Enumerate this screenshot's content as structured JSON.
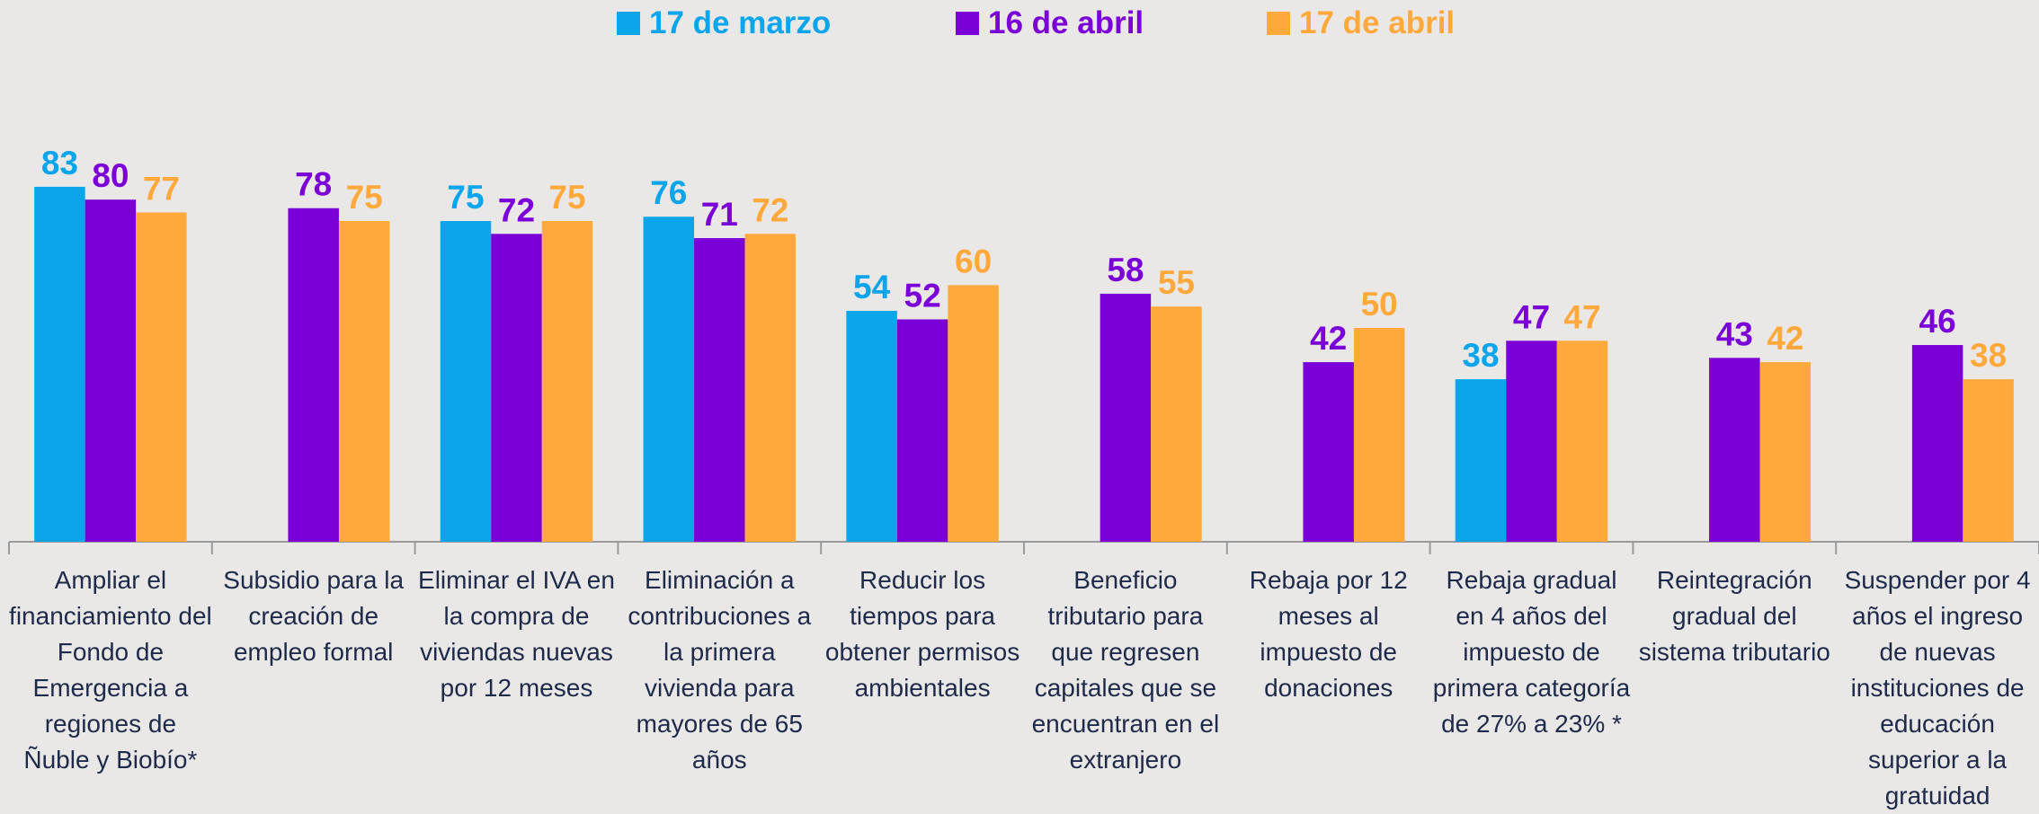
{
  "chart_data": {
    "type": "bar",
    "categories": [
      "Ampliar el financiamiento del Fondo de Emergencia a regiones de Ñuble y Biobío*",
      "Subsidio para la creación de empleo formal",
      "Eliminar el IVA en la compra de viviendas nuevas por 12 meses",
      "Eliminación a contribuciones a la primera vivienda para mayores de 65 años",
      "Reducir los tiempos para obtener permisos ambientales",
      "Beneficio tributario para que regresen capitales que se encuentran en el extranjero",
      "Rebaja por 12 meses al impuesto de donaciones",
      "Rebaja gradual en 4 años del impuesto de primera categoría de 27% a 23% *",
      "Reintegración gradual del sistema tributario",
      "Suspender por 4 años el ingreso de nuevas instituciones de educación superior a la gratuidad"
    ],
    "series": [
      {
        "name": "17 de marzo",
        "color": "#0ba5ec",
        "values": [
          83,
          null,
          75,
          76,
          54,
          null,
          null,
          38,
          null,
          null
        ]
      },
      {
        "name": "16 de abril",
        "color": "#7b00d8",
        "values": [
          80,
          78,
          72,
          71,
          52,
          58,
          42,
          47,
          43,
          46
        ]
      },
      {
        "name": "17 de abril",
        "color": "#ffa93d",
        "values": [
          77,
          75,
          75,
          72,
          60,
          55,
          50,
          47,
          42,
          38
        ]
      }
    ]
  }
}
